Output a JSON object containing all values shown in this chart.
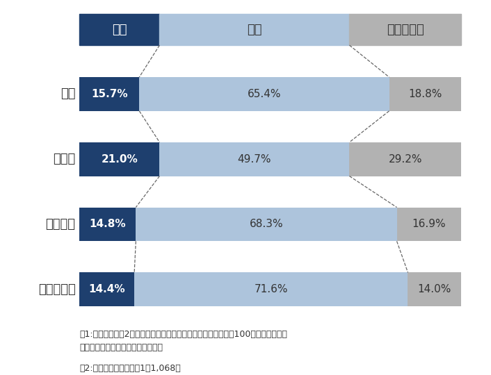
{
  "categories": [
    "全体",
    "大企業",
    "中小企業",
    "小規模企業"
  ],
  "values": [
    [
      15.7,
      65.4,
      18.8
    ],
    [
      21.0,
      49.7,
      29.2
    ],
    [
      14.8,
      68.3,
      16.9
    ],
    [
      14.4,
      71.6,
      14.0
    ]
  ],
  "legend_labels": [
    "ある",
    "ない",
    "分からない"
  ],
  "colors": [
    "#1e3f6e",
    "#adc4dc",
    "#b2b2b2"
  ],
  "bar_height": 0.52,
  "note1_line1": "注1:小数点以下第2位を四捨五入しているため、合計は必ずしも100とはならない。",
  "note1_line2": "　また、内訳も必ずしも一致しない",
  "note2": "注2:母数は有効回答企業1万1,068社",
  "background_color": "#ffffff",
  "label_color_dark": "#ffffff",
  "label_color_light": "#333333",
  "font_size_bar_label": 11,
  "font_size_category": 13,
  "font_size_legend": 13,
  "font_size_note": 9
}
